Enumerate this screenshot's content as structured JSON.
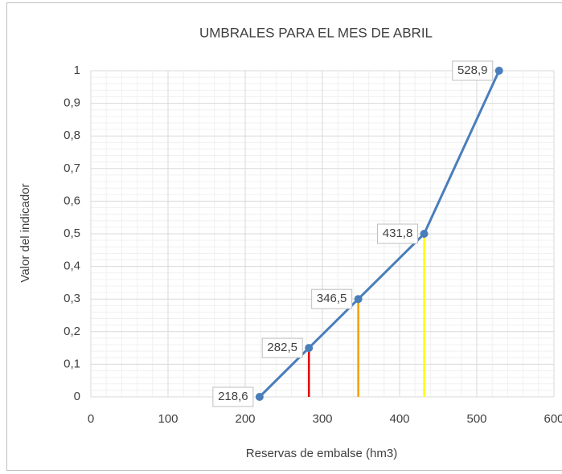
{
  "chart_data": {
    "type": "line",
    "title": "UMBRALES PARA EL MES DE ABRIL",
    "xlabel": "Reservas de embalse (hm3)",
    "ylabel": "Valor del indicador",
    "series": [
      {
        "color": "#4a7ebb",
        "x": [
          218.6,
          282.5,
          346.5,
          431.8,
          528.9
        ],
        "values": [
          0,
          0.15,
          0.3,
          0.5,
          1
        ],
        "value_labels": [
          "218,6",
          "282,5",
          "346,5",
          "431,8",
          "528,9"
        ]
      }
    ],
    "drop_lines": {
      "x": [
        282.5,
        346.5,
        431.8
      ],
      "values": [
        0.15,
        0.3,
        0.5
      ],
      "colors": [
        "#e00000",
        "#f5a000",
        "#ffff00"
      ]
    },
    "xlim": [
      0,
      600
    ],
    "xticks": [
      0,
      100,
      200,
      300,
      400,
      500,
      600
    ],
    "ylim": [
      0,
      1
    ],
    "yticks": [
      0,
      {
        "value": 0.1,
        "label": "0,1"
      },
      {
        "value": 0.2,
        "label": "0,2"
      },
      {
        "value": 0.3,
        "label": "0,3"
      },
      {
        "value": 0.4,
        "label": "0,4"
      },
      {
        "value": 0.5,
        "label": "0,5"
      },
      {
        "value": 0.6,
        "label": "0,6"
      },
      {
        "value": 0.7,
        "label": "0,7"
      },
      {
        "value": 0.8,
        "label": "0,8"
      },
      {
        "value": 0.9,
        "label": "0,9"
      },
      1
    ],
    "grid": true,
    "minor_grid": true
  }
}
